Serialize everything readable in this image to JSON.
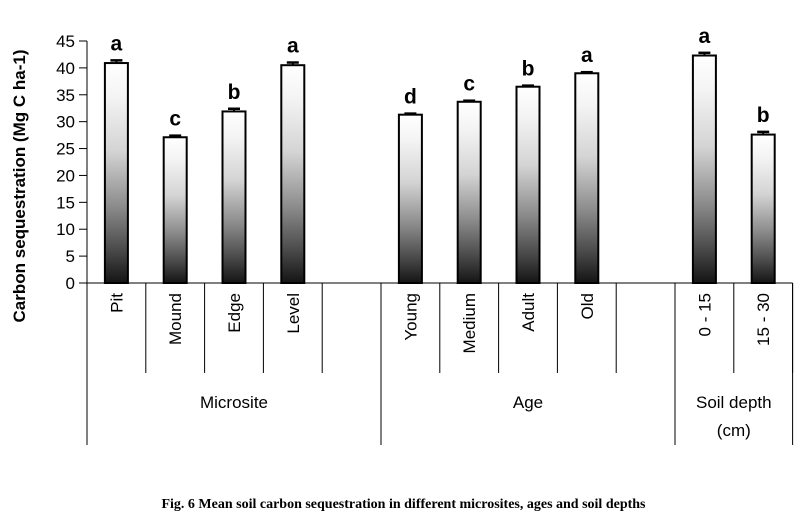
{
  "chart_data": {
    "type": "bar",
    "title": "",
    "xlabel": "",
    "ylabel": "Carbon sequestration (Mg C ha-1)",
    "ylim": [
      0,
      45
    ],
    "yticks": [
      "0",
      "5",
      "10",
      "15",
      "20",
      "25",
      "30",
      "35",
      "40",
      "45"
    ],
    "grid": false,
    "legend": "none",
    "groups": [
      {
        "name": "Microsite",
        "categories": [
          "Pit",
          "Mound",
          "Edge",
          "Level"
        ],
        "values": [
          40.9,
          27.1,
          31.9,
          40.5
        ],
        "errors": [
          0.5,
          0.3,
          0.5,
          0.5
        ],
        "letters": [
          "a",
          "c",
          "b",
          "a"
        ]
      },
      {
        "name": "Age",
        "categories": [
          "Young",
          "Medium",
          "Adult",
          "Old"
        ],
        "values": [
          31.3,
          33.7,
          36.5,
          39.0
        ],
        "errors": [
          0.2,
          0.2,
          0.2,
          0.2
        ],
        "letters": [
          "d",
          "c",
          "b",
          "a"
        ]
      },
      {
        "name": "Soil depth",
        "name_line2": "(cm)",
        "categories": [
          "0 - 15",
          "15 - 30"
        ],
        "values": [
          42.3,
          27.6
        ],
        "errors": [
          0.5,
          0.5
        ],
        "letters": [
          "a",
          "b"
        ]
      }
    ]
  },
  "caption": "Fig. 6 Mean soil carbon sequestration in different microsites, ages and soil depths",
  "colors": {
    "bar_top": "#ffffff",
    "bar_bottom": "#141414",
    "axis": "#000000"
  }
}
